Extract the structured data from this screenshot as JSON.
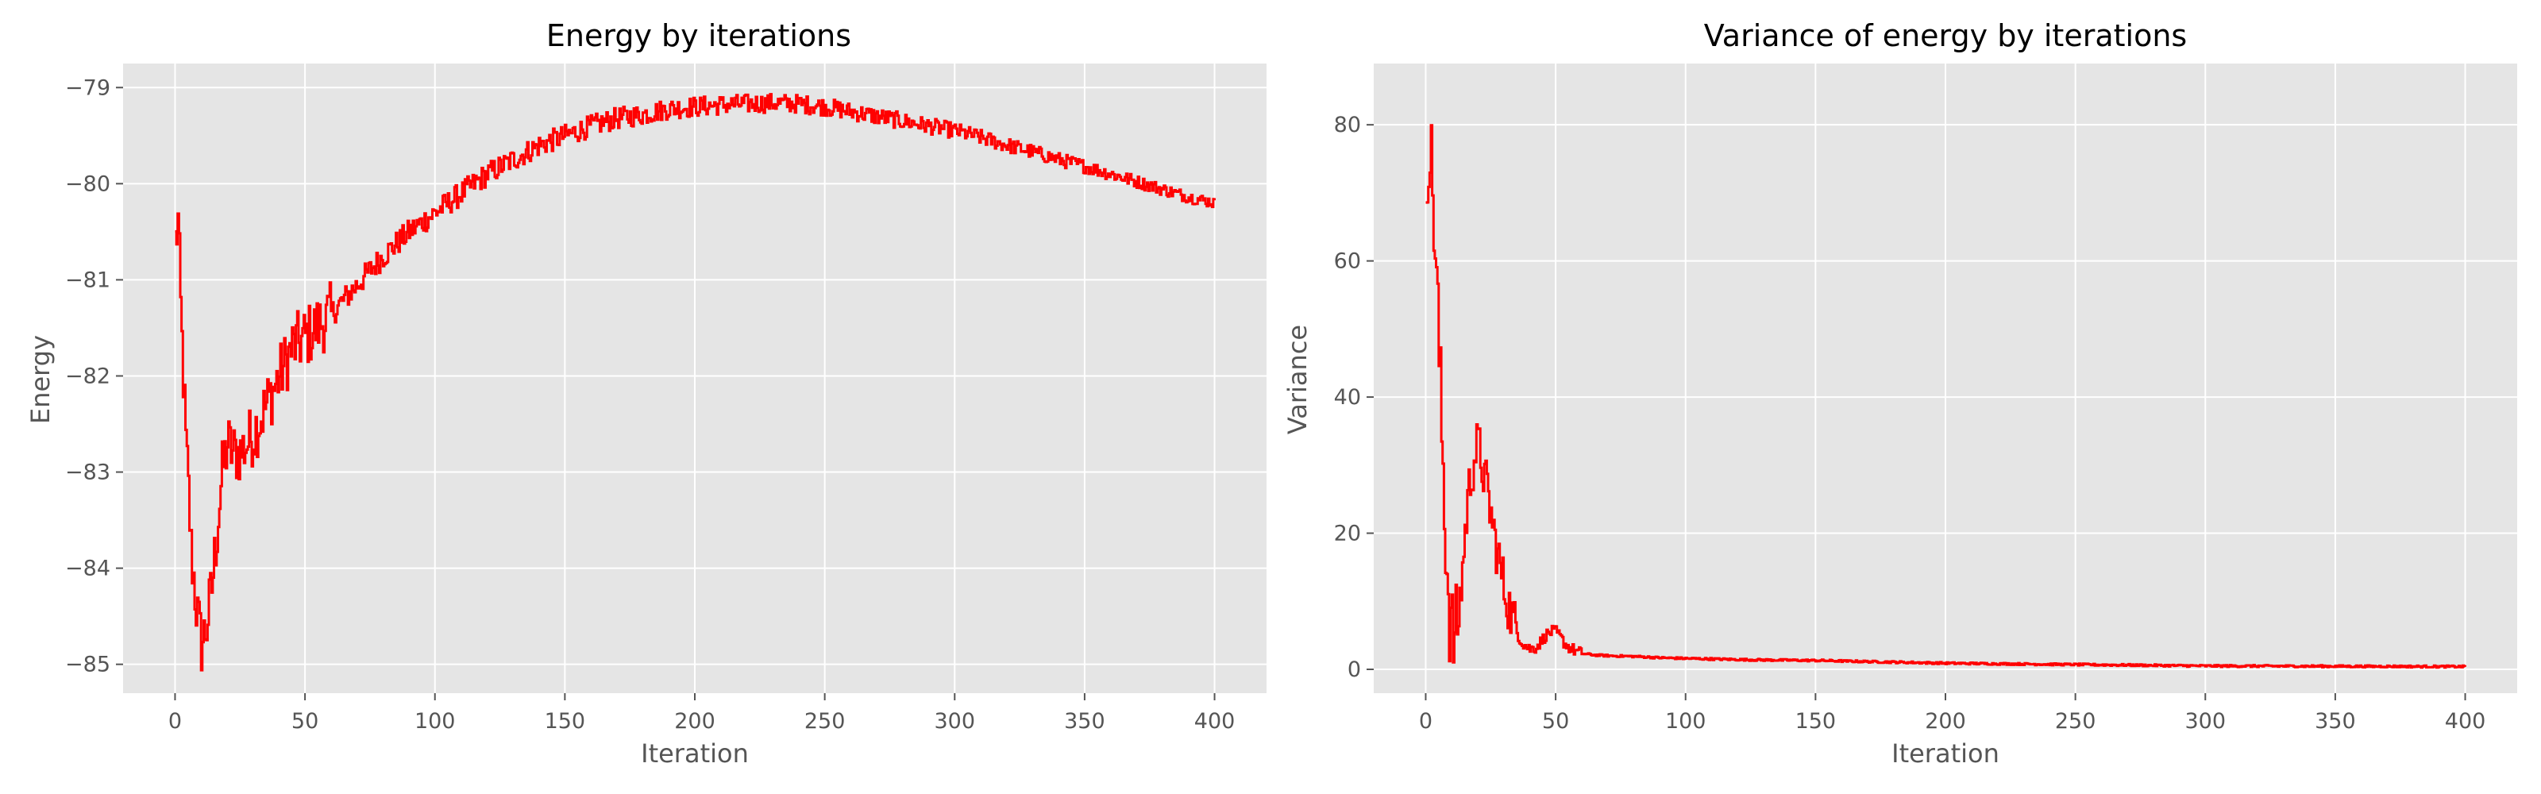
{
  "chart_data": [
    {
      "type": "line",
      "title": "Energy by iterations",
      "xlabel": "Iteration",
      "ylabel": "Energy",
      "xlim": [
        -20,
        420
      ],
      "ylim": [
        -85.3,
        -78.75
      ],
      "xticks": [
        0,
        50,
        100,
        150,
        200,
        250,
        300,
        350,
        400
      ],
      "yticks": [
        -85,
        -84,
        -83,
        -82,
        -81,
        -80,
        -79
      ],
      "ytick_labels": [
        "−85",
        "−84",
        "−83",
        "−82",
        "−81",
        "−80",
        "−79"
      ],
      "grid": true,
      "color": "#ff0000",
      "noise": 0.14,
      "series": [
        {
          "x": [
            0,
            1,
            2,
            3,
            4,
            5,
            6,
            8,
            10,
            12,
            14,
            16,
            18,
            20,
            22,
            25,
            30,
            35,
            40,
            45,
            50,
            60,
            70,
            80,
            90,
            100,
            110,
            120,
            130,
            140,
            150,
            160,
            170,
            180,
            190,
            200,
            210,
            220,
            230,
            240,
            250,
            260,
            270,
            280,
            290,
            300,
            310,
            320,
            330,
            340,
            350,
            360,
            370,
            380,
            390,
            400
          ],
          "y": [
            -80.6,
            -80.4,
            -81.3,
            -82.0,
            -82.7,
            -83.2,
            -83.8,
            -84.4,
            -84.8,
            -84.6,
            -84.2,
            -83.6,
            -83.0,
            -82.7,
            -82.8,
            -82.8,
            -82.6,
            -82.3,
            -82.0,
            -81.7,
            -81.6,
            -81.35,
            -81.05,
            -80.75,
            -80.5,
            -80.3,
            -80.1,
            -79.9,
            -79.75,
            -79.6,
            -79.5,
            -79.4,
            -79.32,
            -79.28,
            -79.22,
            -79.2,
            -79.18,
            -79.17,
            -79.16,
            -79.17,
            -79.2,
            -79.25,
            -79.3,
            -79.35,
            -79.4,
            -79.45,
            -79.52,
            -79.6,
            -79.67,
            -79.75,
            -79.82,
            -79.9,
            -79.98,
            -80.06,
            -80.14,
            -80.2
          ]
        }
      ]
    },
    {
      "type": "line",
      "title": "Variance of energy by iterations",
      "xlabel": "Iteration",
      "ylabel": "Variance",
      "xlim": [
        -20,
        420
      ],
      "ylim": [
        -3.5,
        89
      ],
      "xticks": [
        0,
        50,
        100,
        150,
        200,
        250,
        300,
        350,
        400
      ],
      "yticks": [
        0,
        20,
        40,
        60,
        80
      ],
      "ytick_labels": [
        "0",
        "20",
        "40",
        "60",
        "80"
      ],
      "grid": true,
      "color": "#ff0000",
      "noise": 2.5,
      "series": [
        {
          "x": [
            0,
            1,
            2,
            3,
            4,
            5,
            6,
            7,
            8,
            9,
            10,
            11,
            12,
            13,
            14,
            15,
            16,
            17,
            18,
            19,
            20,
            21,
            22,
            23,
            24,
            26,
            28,
            30,
            32,
            34,
            36,
            38,
            40,
            42,
            44,
            46,
            48,
            50,
            52,
            54,
            56,
            58,
            60,
            65,
            70,
            80,
            90,
            100,
            125,
            150,
            175,
            200,
            250,
            300,
            350,
            400
          ],
          "y": [
            72,
            78,
            74,
            66,
            57,
            46,
            35,
            24,
            15,
            8,
            5,
            4.5,
            6,
            10,
            15,
            20,
            25,
            28,
            30,
            32,
            33,
            31,
            29,
            27,
            25,
            20,
            16,
            12,
            9,
            6.5,
            4.5,
            3.5,
            3,
            3.2,
            4,
            5,
            5.5,
            5.5,
            4.5,
            3.5,
            3,
            2.6,
            2.3,
            2.1,
            2.0,
            1.9,
            1.7,
            1.6,
            1.4,
            1.3,
            1.1,
            0.9,
            0.7,
            0.5,
            0.45,
            0.4
          ]
        }
      ]
    }
  ]
}
